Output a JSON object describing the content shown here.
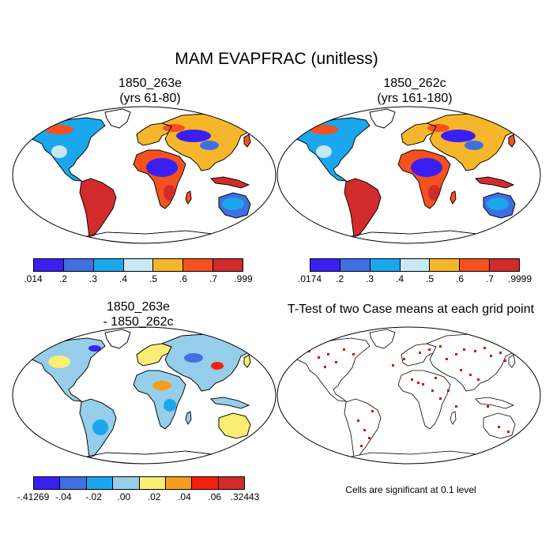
{
  "title": "MAM EVAPFRAC (unitless)",
  "panels": [
    {
      "id": "p1",
      "title_line1": "1850_263e",
      "title_line2": "(yrs 61-80)",
      "kind": "field",
      "labels": [
        ".014",
        ".2",
        ".3",
        ".4",
        ".5",
        ".6",
        ".7",
        ".999"
      ]
    },
    {
      "id": "p2",
      "title_line1": "1850_262c",
      "title_line2": "(yrs 161-180)",
      "kind": "field",
      "labels": [
        ".0174",
        ".2",
        ".3",
        ".4",
        ".5",
        ".6",
        ".7",
        ".9999"
      ]
    },
    {
      "id": "p3",
      "title_line1": "1850_263e",
      "title_line2": "- 1850_262c",
      "kind": "difference",
      "labels": [
        "-.41269",
        "-.04",
        "-.02",
        ".00",
        ".02",
        ".04",
        ".06",
        ".32443"
      ]
    },
    {
      "id": "p4",
      "title_line1": "T-Test of two Case means at each grid point",
      "title_line2": "",
      "kind": "ttest",
      "note": "Cells are significant at 0.1 level"
    }
  ],
  "colors": {
    "field": [
      "#3b1ff2",
      "#3f6fe0",
      "#1aa7ee",
      "#c9e8f5",
      "#f6b62b",
      "#f4511e",
      "#d22b2b"
    ],
    "difference": [
      "#3b1ff2",
      "#3f6fe0",
      "#1aa7ee",
      "#96cdea",
      "#fbed73",
      "#f79d1d",
      "#f51f10",
      "#d22b2b"
    ],
    "significance": "#e00000",
    "land_neutral": "#a9cfa0"
  }
}
